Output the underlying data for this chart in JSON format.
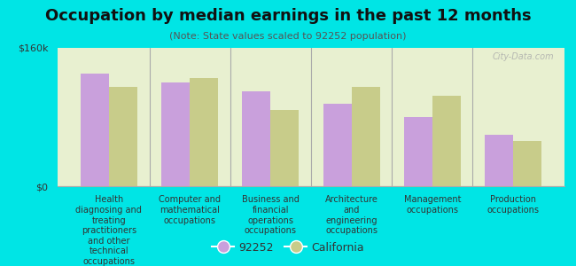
{
  "title": "Occupation by median earnings in the past 12 months",
  "subtitle": "(Note: State values scaled to 92252 population)",
  "categories": [
    "Health\ndiagnosing and\ntreating\npractitioners\nand other\ntechnical\noccupations",
    "Computer and\nmathematical\noccupations",
    "Business and\nfinancial\noperations\noccupations",
    "Architecture\nand\nengineering\noccupations",
    "Management\noccupations",
    "Production\noccupations"
  ],
  "values_92252": [
    130000,
    120000,
    110000,
    95000,
    80000,
    60000
  ],
  "values_california": [
    115000,
    125000,
    88000,
    115000,
    105000,
    52000
  ],
  "color_92252": "#c9a0dc",
  "color_california": "#c8cc8a",
  "ylim": [
    0,
    160000
  ],
  "yticks": [
    0,
    160000
  ],
  "ytick_labels": [
    "$0",
    "$160k"
  ],
  "background_color": "#00e5e5",
  "plot_bg_color": "#e8f0d0",
  "legend_label_92252": "92252",
  "legend_label_california": "California",
  "watermark": "City-Data.com",
  "title_fontsize": 13,
  "subtitle_fontsize": 8,
  "tick_label_fontsize": 8,
  "legend_fontsize": 9
}
